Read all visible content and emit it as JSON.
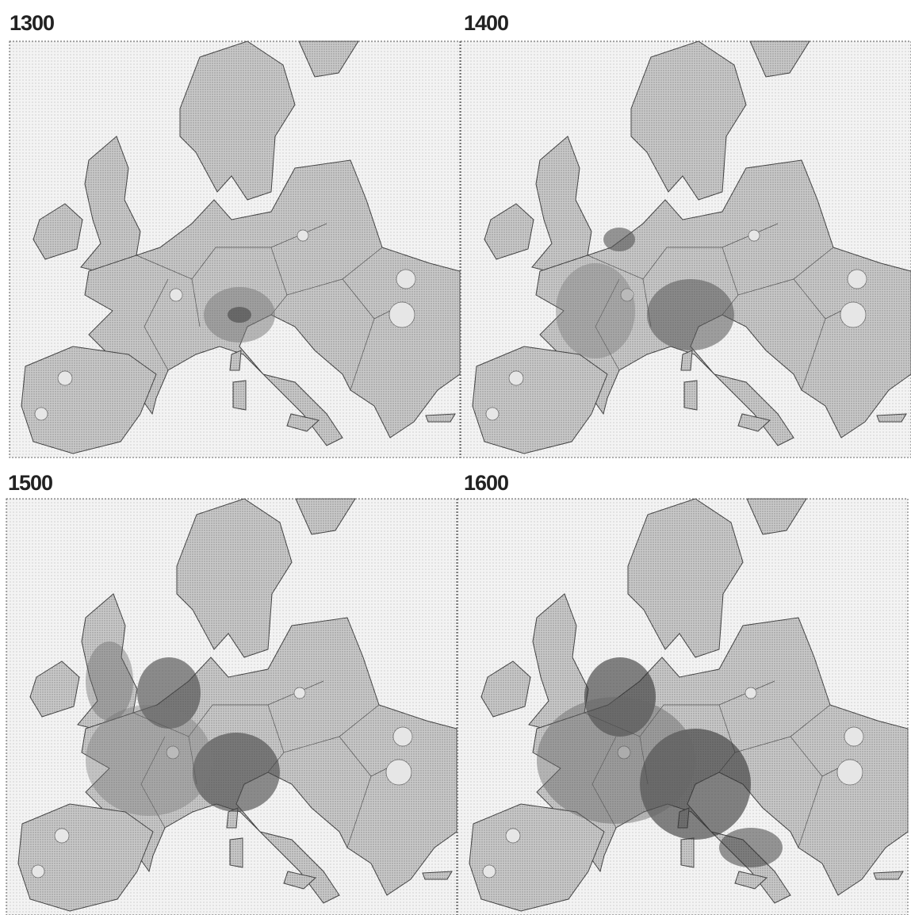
{
  "panels": [
    {
      "title": "1300"
    },
    {
      "title": "1400"
    },
    {
      "title": "1500"
    },
    {
      "title": "1600"
    }
  ]
}
